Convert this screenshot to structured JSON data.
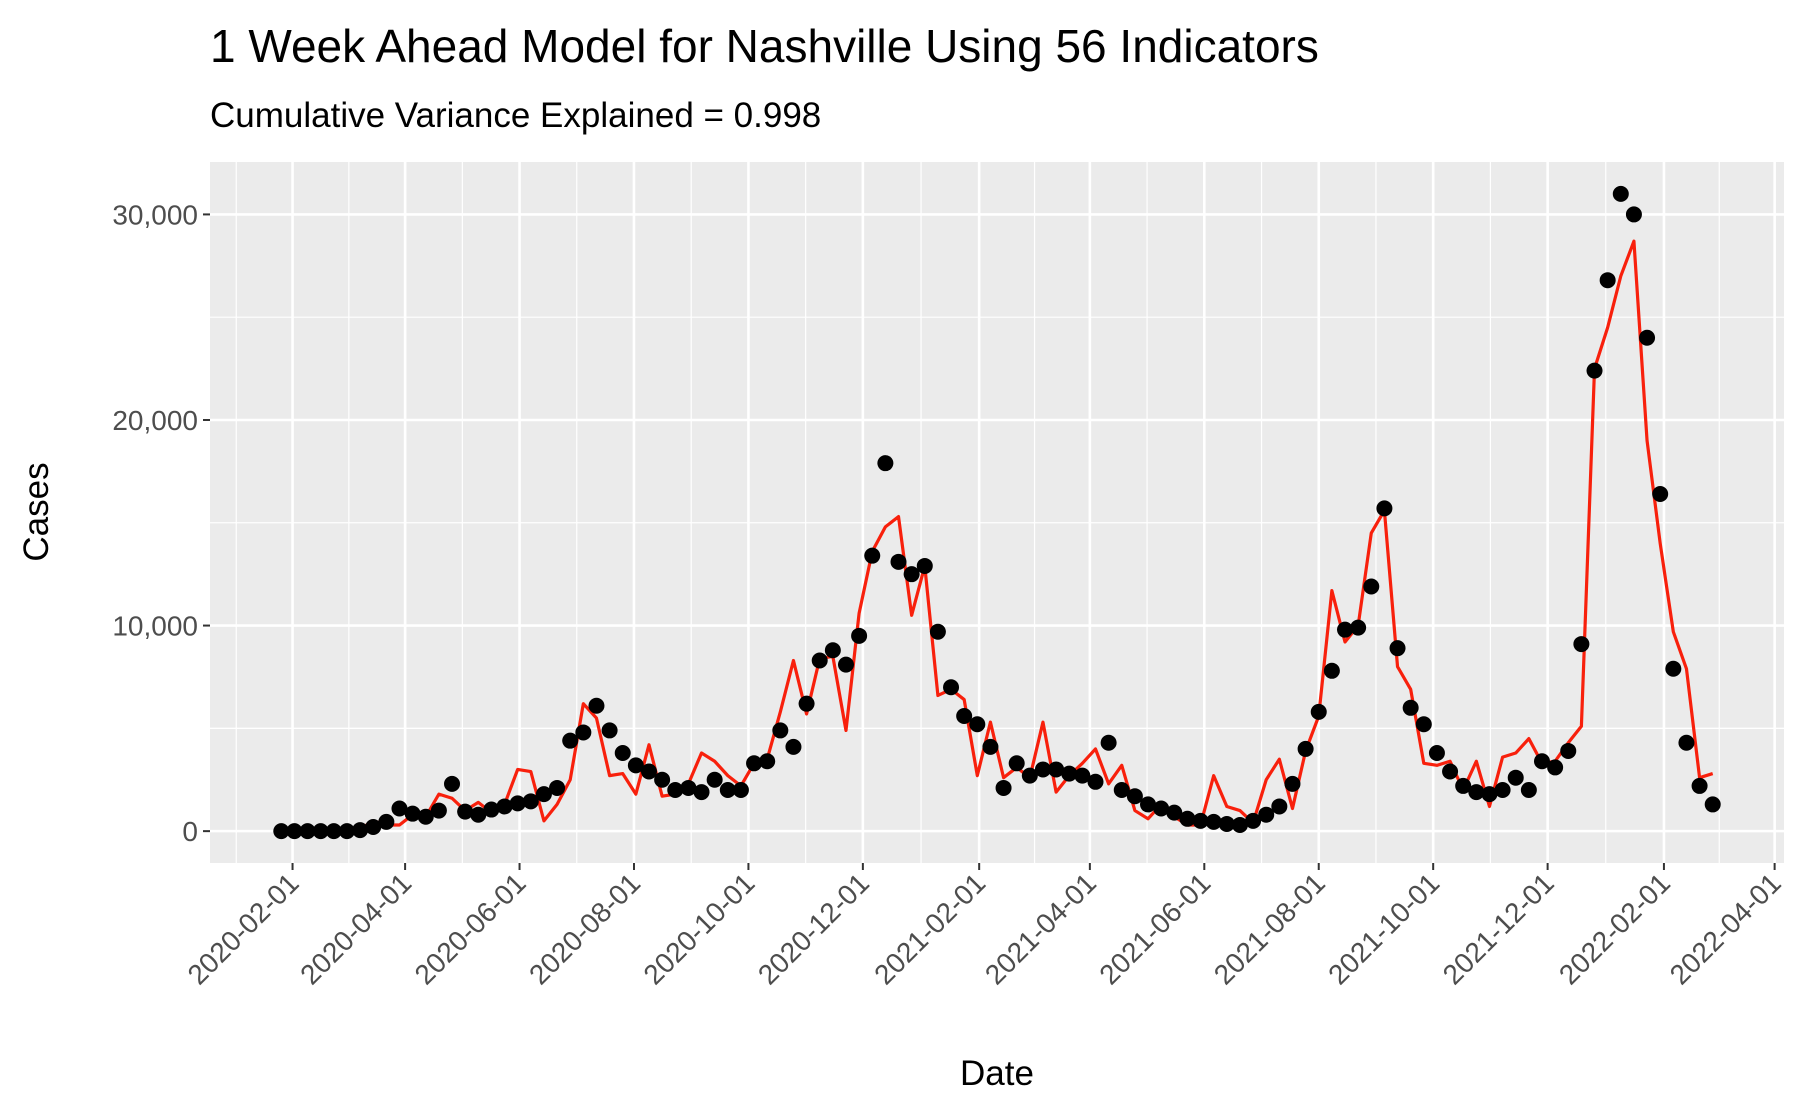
{
  "chart_data": {
    "type": "line",
    "title": "1 Week Ahead Model for Nashville Using 56 Indicators",
    "subtitle": "Cumulative Variance Explained = 0.998",
    "x_label": "Date",
    "y_label": "Cases",
    "x": [
      "2020-01-26",
      "2020-02-02",
      "2020-02-09",
      "2020-02-16",
      "2020-02-23",
      "2020-03-01",
      "2020-03-08",
      "2020-03-15",
      "2020-03-22",
      "2020-03-29",
      "2020-04-05",
      "2020-04-12",
      "2020-04-19",
      "2020-04-26",
      "2020-05-03",
      "2020-05-10",
      "2020-05-17",
      "2020-05-24",
      "2020-05-31",
      "2020-06-07",
      "2020-06-14",
      "2020-06-21",
      "2020-06-28",
      "2020-07-05",
      "2020-07-12",
      "2020-07-19",
      "2020-07-26",
      "2020-08-02",
      "2020-08-09",
      "2020-08-16",
      "2020-08-23",
      "2020-08-30",
      "2020-09-06",
      "2020-09-13",
      "2020-09-20",
      "2020-09-27",
      "2020-10-04",
      "2020-10-11",
      "2020-10-18",
      "2020-10-25",
      "2020-11-01",
      "2020-11-08",
      "2020-11-15",
      "2020-11-22",
      "2020-11-29",
      "2020-12-06",
      "2020-12-13",
      "2020-12-20",
      "2020-12-27",
      "2021-01-03",
      "2021-01-10",
      "2021-01-17",
      "2021-01-24",
      "2021-01-31",
      "2021-02-07",
      "2021-02-14",
      "2021-02-21",
      "2021-02-28",
      "2021-03-07",
      "2021-03-14",
      "2021-03-21",
      "2021-03-28",
      "2021-04-04",
      "2021-04-11",
      "2021-04-18",
      "2021-04-25",
      "2021-05-02",
      "2021-05-09",
      "2021-05-16",
      "2021-05-23",
      "2021-05-30",
      "2021-06-06",
      "2021-06-13",
      "2021-06-20",
      "2021-06-27",
      "2021-07-04",
      "2021-07-11",
      "2021-07-18",
      "2021-07-25",
      "2021-08-01",
      "2021-08-08",
      "2021-08-15",
      "2021-08-22",
      "2021-08-29",
      "2021-09-05",
      "2021-09-12",
      "2021-09-19",
      "2021-09-26",
      "2021-10-03",
      "2021-10-10",
      "2021-10-17",
      "2021-10-24",
      "2021-10-31",
      "2021-11-07",
      "2021-11-14",
      "2021-11-21",
      "2021-11-28",
      "2021-12-05",
      "2021-12-12",
      "2021-12-19",
      "2021-12-26",
      "2022-01-02",
      "2022-01-09",
      "2022-01-16",
      "2022-01-23",
      "2022-01-30",
      "2022-02-06",
      "2022-02-13",
      "2022-02-20",
      "2022-02-27"
    ],
    "series": [
      {
        "type": "line",
        "color": "#f8200c",
        "values": [
          0,
          0,
          0,
          0,
          0,
          0,
          100,
          500,
          300,
          300,
          800,
          700,
          1800,
          1600,
          1000,
          1400,
          900,
          1300,
          3000,
          2900,
          500,
          1300,
          2500,
          6200,
          5500,
          2700,
          2800,
          1800,
          4200,
          1700,
          1800,
          2300,
          3800,
          3400,
          2700,
          2200,
          3300,
          3500,
          5800,
          8300,
          5700,
          8400,
          8500,
          4900,
          10600,
          13600,
          14800,
          15300,
          10500,
          12900,
          6600,
          6900,
          6400,
          2700,
          5300,
          2600,
          3100,
          2600,
          5300,
          1900,
          2700,
          3300,
          4000,
          2300,
          3200,
          1000,
          600,
          1300,
          700,
          300,
          300,
          2700,
          1200,
          1000,
          400,
          2500,
          3500,
          1100,
          3900,
          5600,
          11700,
          9200,
          10000,
          14500,
          15600,
          8000,
          6900,
          3300,
          3200,
          3400,
          2000,
          3400,
          1200,
          3600,
          3800,
          4500,
          3300,
          3400,
          4300,
          5100,
          22500,
          24500,
          27000,
          28700,
          19000,
          14000,
          9700,
          7900,
          2600,
          2800
        ]
      },
      {
        "type": "scatter",
        "color": "#000000",
        "values": [
          0,
          0,
          0,
          0,
          0,
          0,
          50,
          200,
          450,
          1100,
          850,
          700,
          1000,
          2300,
          950,
          800,
          1050,
          1200,
          1350,
          1450,
          1800,
          2100,
          4400,
          4800,
          6100,
          4900,
          3800,
          3200,
          2900,
          2500,
          2000,
          2100,
          1900,
          2500,
          2000,
          2000,
          3300,
          3400,
          4900,
          4100,
          6200,
          8300,
          8800,
          8100,
          9500,
          13400,
          17900,
          13100,
          12500,
          12900,
          9700,
          7000,
          5600,
          5200,
          4100,
          2100,
          3300,
          2700,
          3000,
          3000,
          2800,
          2700,
          2400,
          4300,
          2000,
          1700,
          1300,
          1100,
          900,
          600,
          500,
          450,
          350,
          300,
          500,
          800,
          1200,
          2300,
          4000,
          5800,
          7800,
          9800,
          9900,
          11900,
          15700,
          8900,
          6000,
          5200,
          3800,
          2900,
          2200,
          1900,
          1800,
          2000,
          2600,
          2000,
          3400,
          3100,
          3900,
          9100,
          22400,
          26800,
          31000,
          30000,
          24000,
          16400,
          7900,
          4300,
          2200,
          1300
        ]
      }
    ],
    "xlim": [
      "2019-12-19",
      "2022-04-06"
    ],
    "xticks": [
      "2020-02-01",
      "2020-04-01",
      "2020-06-01",
      "2020-08-01",
      "2020-10-01",
      "2020-12-01",
      "2021-02-01",
      "2021-04-01",
      "2021-06-01",
      "2021-08-01",
      "2021-10-01",
      "2021-12-01",
      "2022-02-01",
      "2022-04-01"
    ],
    "ylim": [
      -1550,
      32550
    ],
    "yticks": [
      0,
      {
        "value": 10000,
        "label": "10,000"
      },
      {
        "value": 20000,
        "label": "20,000"
      },
      {
        "value": 30000,
        "label": "30,000"
      }
    ],
    "grid": true,
    "panel_color": "#ebebeb"
  }
}
